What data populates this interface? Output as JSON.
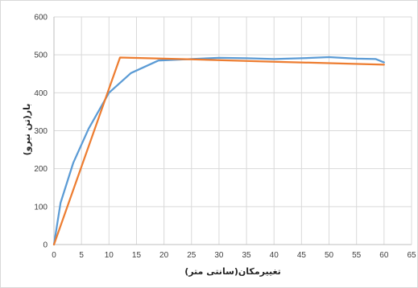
{
  "chart_data": {
    "type": "line",
    "title": "",
    "xlabel": "تغییرمکان(سانتی متر)",
    "ylabel": "بار(تن نیرو)",
    "xlim": [
      0,
      65
    ],
    "ylim": [
      0,
      600
    ],
    "xticks": [
      0,
      5,
      10,
      15,
      20,
      25,
      30,
      35,
      40,
      45,
      50,
      55,
      60,
      65
    ],
    "yticks": [
      0,
      100,
      200,
      300,
      400,
      500,
      600
    ],
    "grid": true,
    "legend": "none",
    "series": [
      {
        "color": "#5b9bd5",
        "x": [
          0,
          1.2,
          3.5,
          6.3,
          10,
          14,
          19,
          25,
          30,
          35,
          40,
          45,
          50,
          55,
          58.5,
          60
        ],
        "y": [
          0,
          110,
          215,
          305,
          400,
          452,
          485,
          489,
          492,
          491,
          489,
          491,
          494,
          490,
          489,
          480
        ]
      },
      {
        "color": "#ed7d31",
        "x": [
          0,
          12,
          25,
          40,
          60
        ],
        "y": [
          0,
          493,
          488,
          482,
          474
        ]
      }
    ]
  }
}
